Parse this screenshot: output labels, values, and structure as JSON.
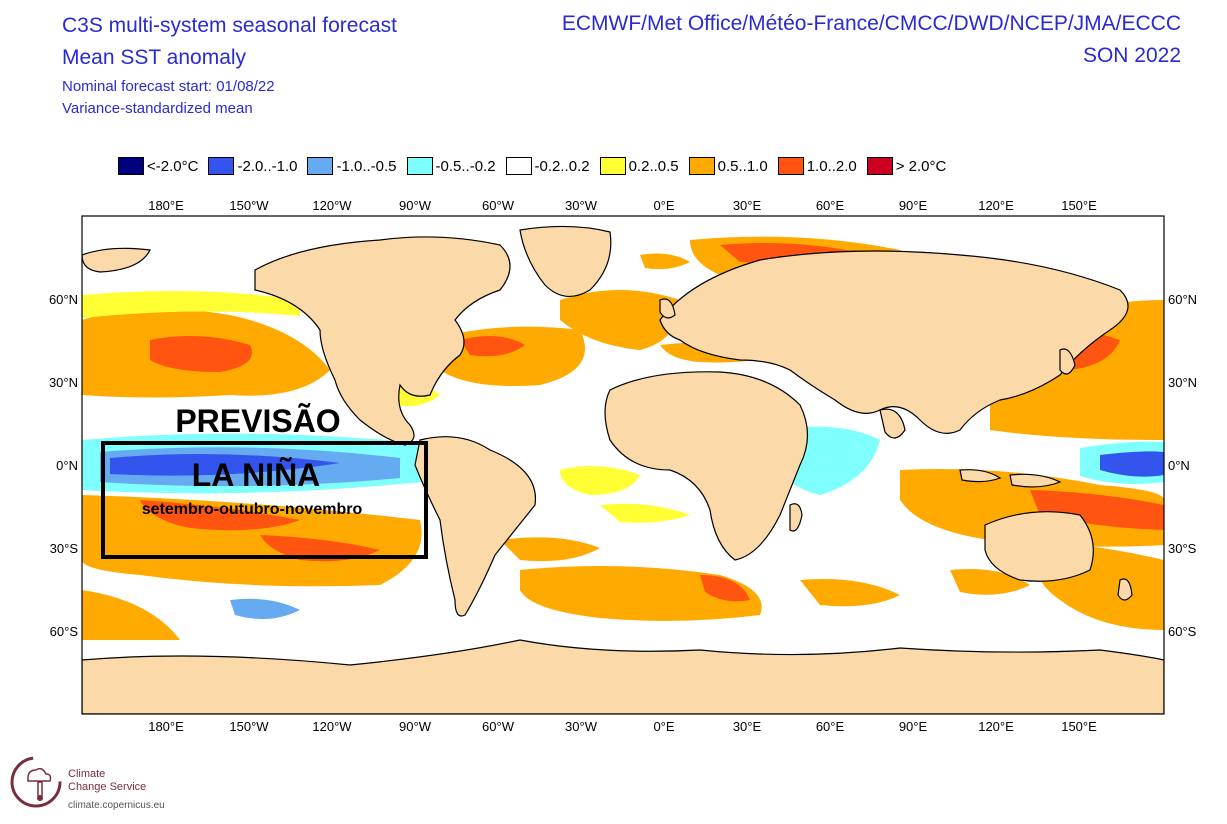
{
  "title": {
    "line1": "C3S multi-system seasonal forecast",
    "line2": "Mean SST anomaly",
    "line3": "Nominal forecast start: 01/08/22",
    "line4": "Variance-standardized mean"
  },
  "header_right": {
    "centres": "ECMWF/Met Office/Météo-France/CMCC/DWD/NCEP/JMA/ECCC",
    "season": "SON 2022"
  },
  "legend": [
    {
      "label": "<-2.0°C",
      "color": "#00007f"
    },
    {
      "label": "-2.0..-1.0",
      "color": "#3355ee"
    },
    {
      "label": "-1.0..-0.5",
      "color": "#66aaf2"
    },
    {
      "label": "-0.5..-0.2",
      "color": "#80ffff"
    },
    {
      "label": "-0.2..0.2",
      "color": "#ffffff"
    },
    {
      "label": "0.2..0.5",
      "color": "#ffff33"
    },
    {
      "label": "0.5..1.0",
      "color": "#ffaa00"
    },
    {
      "label": "1.0..2.0",
      "color": "#ff5511"
    },
    {
      "label": "> 2.0°C",
      "color": "#cc0022"
    }
  ],
  "axes": {
    "lon_labels": [
      "180°E",
      "150°W",
      "120°W",
      "90°W",
      "60°W",
      "30°W",
      "0°E",
      "30°E",
      "60°E",
      "90°E",
      "120°E",
      "150°E"
    ],
    "lat_labels": [
      "60°N",
      "30°N",
      "0°N",
      "30°S",
      "60°S"
    ]
  },
  "annotation": {
    "line1": "PREVISÃO",
    "line2": "LA NIÑA",
    "line3": "setembro-outubro-novembro"
  },
  "logo": {
    "line1": "Climate",
    "line2": "Change Service",
    "url": "climate.copernicus.eu"
  },
  "colors": {
    "land": "#fbd9a8",
    "ocean": "#ffffff",
    "title": "#2a2ad4"
  }
}
